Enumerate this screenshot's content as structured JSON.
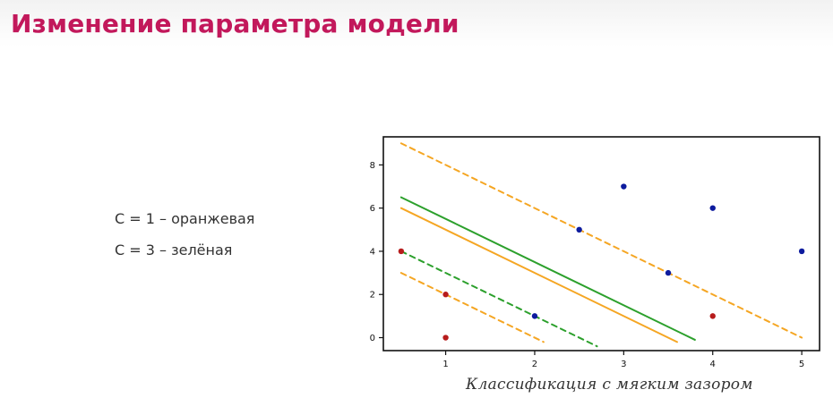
{
  "title": "Изменение параметра модели",
  "notes": [
    "C = 1 – оранжевая",
    "C = 3 – зелёная"
  ],
  "caption": "Классификация с мягким зазором",
  "chart_data": {
    "type": "scatter",
    "xlim": [
      0.3,
      5.2
    ],
    "ylim": [
      -0.6,
      9.3
    ],
    "xticks": [
      1,
      2,
      3,
      4,
      5
    ],
    "yticks": [
      0,
      2,
      4,
      6,
      8
    ],
    "grid": false,
    "points": [
      {
        "x": 0.5,
        "y": 4,
        "class": "red"
      },
      {
        "x": 1,
        "y": 2,
        "class": "red"
      },
      {
        "x": 1,
        "y": 0,
        "class": "red"
      },
      {
        "x": 4,
        "y": 1,
        "class": "red"
      },
      {
        "x": 2,
        "y": 1,
        "class": "blue"
      },
      {
        "x": 2.5,
        "y": 5,
        "class": "blue"
      },
      {
        "x": 3,
        "y": 7,
        "class": "blue"
      },
      {
        "x": 3.5,
        "y": 3,
        "class": "blue"
      },
      {
        "x": 4,
        "y": 6,
        "class": "blue"
      },
      {
        "x": 5,
        "y": 4,
        "class": "blue"
      }
    ],
    "lines": [
      {
        "color": "#f5a623",
        "style": "solid",
        "from": [
          0.5,
          6.0
        ],
        "to": [
          3.6,
          -0.2
        ]
      },
      {
        "color": "#f5a623",
        "style": "dashed",
        "from": [
          0.5,
          9.0
        ],
        "to": [
          5.0,
          0.0
        ]
      },
      {
        "color": "#f5a623",
        "style": "dashed",
        "from": [
          0.5,
          3.0
        ],
        "to": [
          2.1,
          -0.2
        ]
      },
      {
        "color": "#2ca02c",
        "style": "solid",
        "from": [
          0.5,
          6.5
        ],
        "to": [
          3.8,
          -0.1
        ]
      },
      {
        "color": "#2ca02c",
        "style": "dashed",
        "from": [
          0.5,
          4.0
        ],
        "to": [
          2.7,
          -0.4
        ]
      }
    ],
    "colors": {
      "red": "#b71c1c",
      "blue": "#0d1b9e",
      "orange": "#f5a623",
      "green": "#2ca02c"
    }
  }
}
